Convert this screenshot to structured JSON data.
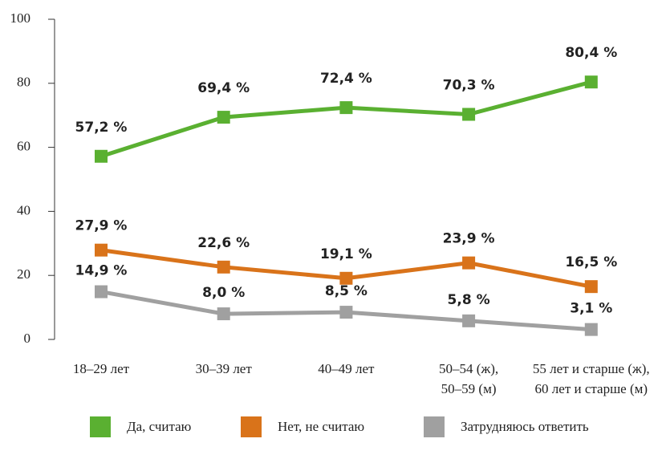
{
  "chart_data": {
    "type": "line",
    "categories": [
      "18–29 лет",
      "30–39 лет",
      "40–49 лет",
      "50–54 (ж),\n50–59 (м)",
      "55 лет и старше (ж),\n60 лет и старше (м)"
    ],
    "series": [
      {
        "name": "Да, считаю",
        "color": "#5ab031",
        "values": [
          57.2,
          69.4,
          72.4,
          70.3,
          80.4
        ],
        "value_labels": [
          "57,2 %",
          "69,4 %",
          "72,4 %",
          "70,3 %",
          "80,4 %"
        ]
      },
      {
        "name": "Нет, не считаю",
        "color": "#d9731a",
        "values": [
          27.9,
          22.6,
          19.1,
          23.9,
          16.5
        ],
        "value_labels": [
          "27,9 %",
          "22,6 %",
          "19,1 %",
          "23,9 %",
          "16,5 %"
        ]
      },
      {
        "name": "Затрудняюсь ответить",
        "color": "#a0a0a0",
        "values": [
          14.9,
          8.0,
          8.5,
          5.8,
          3.1
        ],
        "value_labels": [
          "14,9 %",
          "8,0 %",
          "8,5 %",
          "5,8 %",
          "3,1 %"
        ]
      }
    ],
    "ylim": [
      0,
      100
    ],
    "yticks": [
      0,
      20,
      40,
      60,
      80,
      100
    ],
    "grid": false,
    "legend": "bottom"
  }
}
